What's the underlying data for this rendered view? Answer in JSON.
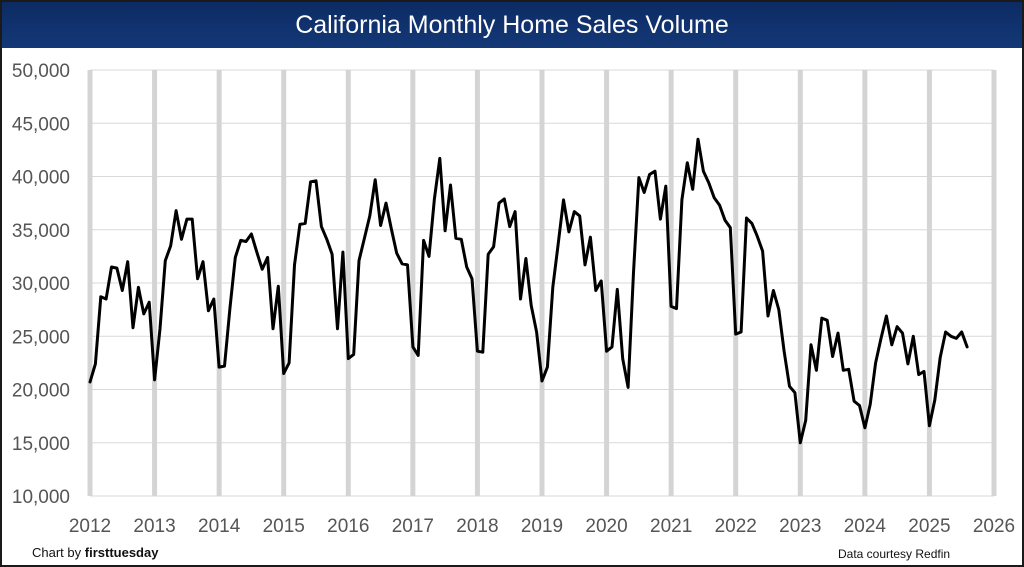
{
  "title": "California Monthly Home Sales Volume",
  "credit": {
    "prefix": "Chart by",
    "brand": "firsttuesday"
  },
  "source": "Data courtesy Redfin",
  "colors": {
    "title_bg": "#0c2b63",
    "line": "#000000",
    "grid": "#d9d9d9",
    "year_bar": "#d4d4d4"
  },
  "chart_data": {
    "type": "line",
    "title": "California Monthly Home Sales Volume",
    "xlabel": "",
    "ylabel": "",
    "xlim": [
      2012,
      2026
    ],
    "ylim": [
      10000,
      50000
    ],
    "y_ticks": [
      10000,
      15000,
      20000,
      25000,
      30000,
      35000,
      40000,
      45000,
      50000
    ],
    "y_tick_labels": [
      "10,000",
      "15,000",
      "20,000",
      "25,000",
      "30,000",
      "35,000",
      "40,000",
      "45,000",
      "50,000"
    ],
    "x_tick_labels": [
      "2012",
      "2013",
      "2014",
      "2015",
      "2016",
      "2017",
      "2018",
      "2019",
      "2020",
      "2021",
      "2022",
      "2023",
      "2024",
      "2025",
      "2026"
    ],
    "series": [
      {
        "name": "Monthly home sales",
        "start": "2012-01",
        "values": [
          20700,
          22400,
          28700,
          28500,
          31500,
          31400,
          29300,
          32000,
          25800,
          29600,
          27100,
          28200,
          20900,
          25700,
          32100,
          33500,
          36800,
          34100,
          36000,
          36000,
          30400,
          32000,
          27400,
          28500,
          22100,
          22200,
          27600,
          32400,
          34000,
          33900,
          34600,
          32900,
          31300,
          32400,
          25700,
          29700,
          21500,
          22500,
          31700,
          35500,
          35600,
          39500,
          39600,
          35300,
          34100,
          32700,
          25700,
          32900,
          22900,
          23300,
          32100,
          34200,
          36300,
          39700,
          35400,
          37500,
          35100,
          32800,
          31800,
          31700,
          24000,
          23200,
          34000,
          32500,
          37900,
          41700,
          34900,
          39200,
          34200,
          34100,
          31500,
          30400,
          23600,
          23500,
          32700,
          33400,
          37500,
          37900,
          35300,
          36700,
          28500,
          32300,
          27900,
          25400,
          20800,
          22100,
          29600,
          33600,
          37800,
          34800,
          36700,
          36300,
          31700,
          34300,
          29300,
          30200,
          23600,
          24000,
          29400,
          22900,
          20200,
          31000,
          39900,
          38500,
          40200,
          40500,
          36000,
          39100,
          27800,
          27600,
          37800,
          41300,
          38800,
          43500,
          40500,
          39400,
          38000,
          37300,
          35900,
          35200,
          25200,
          25400,
          36100,
          35600,
          34400,
          33000,
          26900,
          29300,
          27500,
          23600,
          20300,
          19700,
          15000,
          17100,
          24200,
          21800,
          26700,
          26500,
          23100,
          25300,
          21800,
          21900,
          18900,
          18500,
          16400,
          18600,
          22500,
          24800,
          26900,
          24200,
          25900,
          25300,
          22400,
          25000,
          21400,
          21700,
          16600,
          19000,
          23000,
          25400,
          25000,
          24800,
          25400,
          24000
        ]
      }
    ]
  }
}
